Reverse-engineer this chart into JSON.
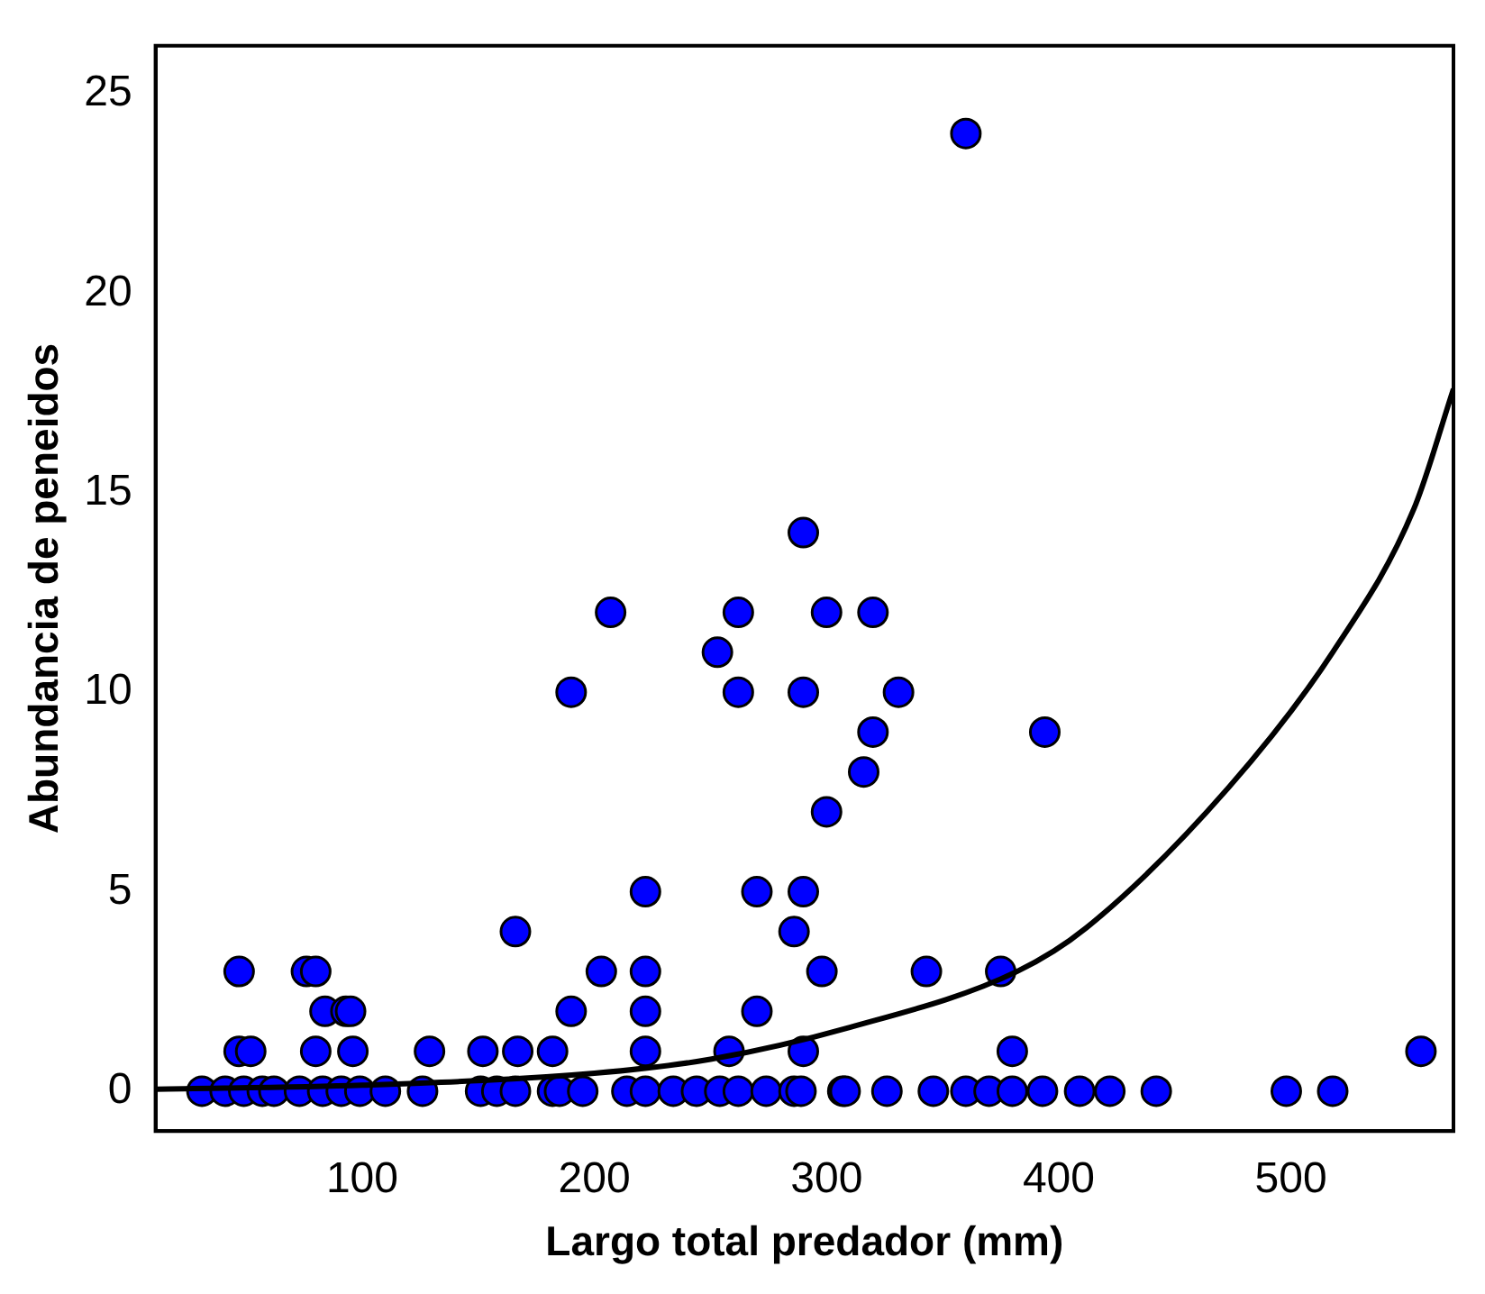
{
  "chart_data": {
    "type": "scatter",
    "xlabel": "Largo total predador (mm)",
    "ylabel": "Abundancia de peneidos",
    "xlim": [
      11,
      570
    ],
    "ylim": [
      -1,
      26.2
    ],
    "xticks": [
      100,
      200,
      300,
      400,
      500
    ],
    "yticks": [
      0,
      5,
      10,
      15,
      20,
      25
    ],
    "grid": false,
    "legend": false,
    "marker": "circle",
    "series": [
      {
        "color": "#0000ff",
        "x": [
          47,
          47,
          52,
          76,
          80,
          84,
          93,
          80,
          96,
          95,
          129,
          152,
          166,
          167,
          182,
          190,
          190,
          203,
          207,
          222,
          222,
          222,
          222,
          253,
          258,
          262,
          262,
          270,
          270,
          286,
          290,
          290,
          290,
          290,
          300,
          300,
          298,
          316,
          320,
          320,
          331,
          343,
          360,
          375,
          380,
          394,
          556,
          31,
          41,
          49,
          57,
          62,
          73,
          83,
          91,
          99,
          110,
          126,
          151,
          158,
          166,
          182,
          185,
          195,
          214,
          222,
          234,
          244,
          254,
          262,
          274,
          286,
          289,
          307,
          308,
          326,
          346,
          360,
          370,
          380,
          393,
          409,
          422,
          442,
          498,
          518
        ],
        "values": [
          3,
          1,
          1,
          3,
          3,
          2,
          2,
          1,
          1,
          2,
          1,
          1,
          4,
          1,
          1,
          2,
          10,
          3,
          12,
          5,
          3,
          2,
          1,
          11,
          1,
          12,
          10,
          5,
          2,
          4,
          14,
          10,
          5,
          1,
          12,
          7,
          3,
          8,
          9,
          12,
          10,
          3,
          24,
          3,
          1,
          9,
          1,
          0,
          0,
          0,
          0,
          0,
          0,
          0,
          0,
          0,
          0,
          0,
          0,
          0,
          0,
          0,
          0,
          0,
          0,
          0,
          0,
          0,
          0,
          0,
          0,
          0,
          0,
          0,
          0,
          0,
          0,
          0,
          0,
          0,
          0,
          0,
          0,
          0,
          0,
          0
        ]
      },
      {
        "type": "line",
        "color": "#000000",
        "line_style": "solid",
        "marker": "none",
        "x": [
          11,
          100,
          200,
          250,
          310,
          382,
          412,
          473,
          518,
          553,
          570
        ],
        "values": [
          0.05,
          0.15,
          0.45,
          0.8,
          1.6,
          3.0,
          4.1,
          7.6,
          11,
          14.6,
          17.6
        ]
      }
    ]
  }
}
